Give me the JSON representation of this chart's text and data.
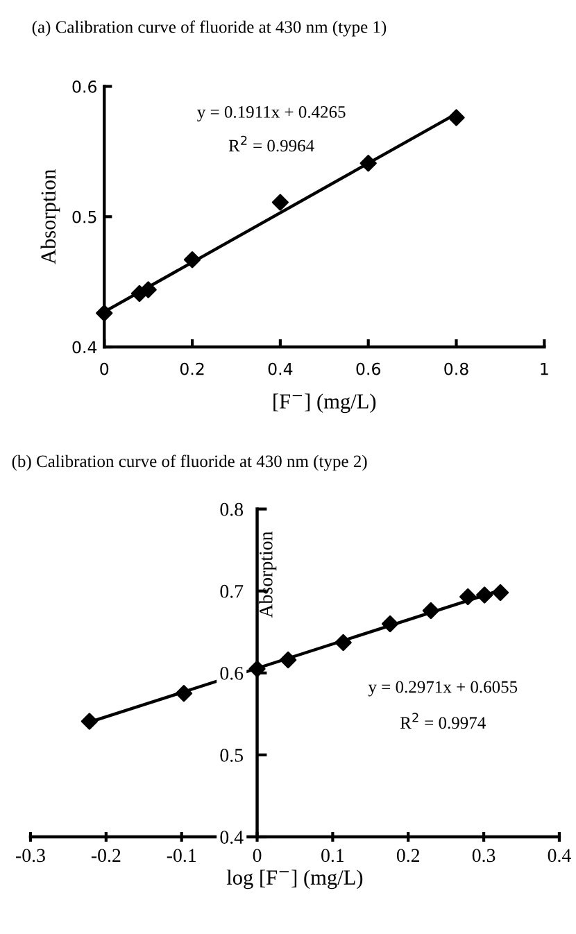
{
  "chart_data": [
    {
      "type": "scatter",
      "title": "(a) Calibration curve of fluoride at 430 nm (type 1)",
      "xlabel": "[F$^{−}$] (mg/L)",
      "ylabel": "Absorption",
      "series": [
        {
          "color": "#000000",
          "marker": "diamond",
          "x": [
            0,
            0.08,
            0.1,
            0.2,
            0.4,
            0.6,
            0.8
          ],
          "values": [
            0.426,
            0.441,
            0.444,
            0.467,
            0.511,
            0.541,
            0.576
          ]
        },
        {
          "type": "line",
          "color": "#000000",
          "marker": "none",
          "line_style": "solid",
          "x": [
            0,
            0.8
          ],
          "values": [
            0.427,
            0.579
          ]
        }
      ],
      "annotations": [
        "y = 0.1911x + 0.4265",
        "R$^{2}$ = 0.9964"
      ],
      "xlim": [
        0,
        1
      ],
      "xticks": [
        0,
        0.2,
        0.4,
        0.6,
        0.8,
        1
      ],
      "ylim": [
        0.4,
        0.6
      ],
      "yticks": [
        0.4,
        0.5,
        0.6
      ],
      "grid": false,
      "legend": false
    },
    {
      "type": "scatter",
      "title": "(b) Calibration curve of fluoride at 430 nm (type 2)",
      "xlabel": "log [F$^{−}$] (mg/L)",
      "ylabel": "Absorption",
      "series": [
        {
          "color": "#000000",
          "marker": "diamond",
          "x": [
            -0.222,
            -0.097,
            0,
            0.041,
            0.114,
            0.176,
            0.23,
            0.279,
            0.301,
            0.322
          ],
          "values": [
            0.541,
            0.575,
            0.605,
            0.616,
            0.637,
            0.66,
            0.676,
            0.693,
            0.695,
            0.698
          ]
        },
        {
          "type": "line",
          "color": "#000000",
          "marker": "none",
          "line_style": "solid",
          "x": [
            -0.222,
            0.322
          ],
          "values": [
            0.54,
            0.701
          ]
        }
      ],
      "annotations": [
        "y = 0.2971x + 0.6055",
        "R$^{2}$ = 0.9974"
      ],
      "xlim": [
        -0.3,
        0.4
      ],
      "xticks": [
        -0.3,
        -0.2,
        -0.1,
        0,
        0.1,
        0.2,
        0.3,
        0.4
      ],
      "ylim": [
        0.4,
        0.8
      ],
      "yticks": [
        0.4,
        0.5,
        0.6,
        0.7,
        0.8
      ],
      "grid": false,
      "legend": false
    }
  ]
}
